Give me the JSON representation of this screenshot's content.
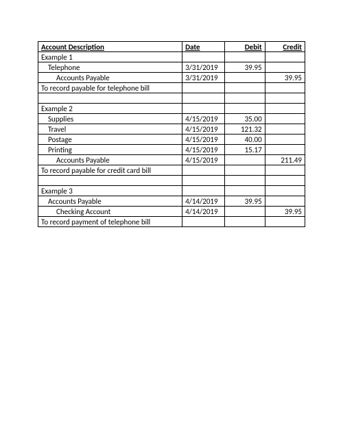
{
  "table": {
    "headers": {
      "desc": "Account Description",
      "date": "Date",
      "debit": "Debit",
      "credit": "Credit"
    },
    "rows": [
      {
        "desc": "Example 1",
        "indent": 0,
        "date": "",
        "debit": "",
        "credit": ""
      },
      {
        "desc": "Telephone",
        "indent": 1,
        "date": "3/31/2019",
        "debit": "39.95",
        "credit": ""
      },
      {
        "desc": "Accounts Payable",
        "indent": 2,
        "date": "3/31/2019",
        "debit": "",
        "credit": "39.95"
      },
      {
        "desc": "To record payable for telephone bill",
        "indent": 0,
        "date": "",
        "debit": "",
        "credit": ""
      },
      {
        "desc": "",
        "indent": 0,
        "date": "",
        "debit": "",
        "credit": ""
      },
      {
        "desc": "Example 2",
        "indent": 0,
        "date": "",
        "debit": "",
        "credit": ""
      },
      {
        "desc": "Supplies",
        "indent": 1,
        "date": "4/15/2019",
        "debit": "35.00",
        "credit": ""
      },
      {
        "desc": "Travel",
        "indent": 1,
        "date": "4/15/2019",
        "debit": "121.32",
        "credit": ""
      },
      {
        "desc": "Postage",
        "indent": 1,
        "date": "4/15/2019",
        "debit": "40.00",
        "credit": ""
      },
      {
        "desc": "Printing",
        "indent": 1,
        "date": "4/15/2019",
        "debit": "15.17",
        "credit": ""
      },
      {
        "desc": "Accounts Payable",
        "indent": 2,
        "date": "4/15/2019",
        "debit": "",
        "credit": "211.49"
      },
      {
        "desc": "To record payable for credit card bill",
        "indent": 0,
        "date": "",
        "debit": "",
        "credit": ""
      },
      {
        "desc": "",
        "indent": 0,
        "date": "",
        "debit": "",
        "credit": ""
      },
      {
        "desc": "Example 3",
        "indent": 0,
        "date": "",
        "debit": "",
        "credit": ""
      },
      {
        "desc": "Accounts Payable",
        "indent": 1,
        "date": "4/14/2019",
        "debit": "39.95",
        "credit": ""
      },
      {
        "desc": "Checking Account",
        "indent": 2,
        "date": "4/14/2019",
        "debit": "",
        "credit": "39.95"
      },
      {
        "desc": "To record payment of telephone bill",
        "indent": 0,
        "date": "",
        "debit": "",
        "credit": ""
      }
    ]
  },
  "styles": {
    "background_color": "#ffffff",
    "border_color": "#000000",
    "text_color": "#000000",
    "font_family": "Calibri",
    "font_size_pt": 8,
    "header_bold": true,
    "header_underline": true,
    "col_widths_pct": [
      54,
      16,
      15,
      15
    ],
    "align": {
      "desc": "left",
      "date": "left",
      "debit": "right",
      "credit": "right"
    }
  }
}
